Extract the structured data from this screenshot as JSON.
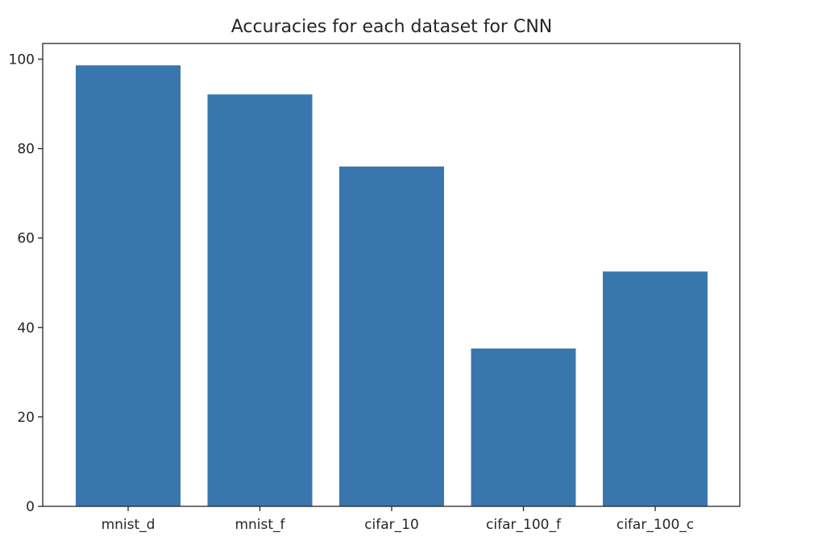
{
  "chart_data": {
    "type": "bar",
    "title": "Accuracies for each dataset for CNN",
    "xlabel": "",
    "ylabel": "",
    "categories": [
      "mnist_d",
      "mnist_f",
      "cifar_10",
      "cifar_100_f",
      "cifar_100_c"
    ],
    "values": [
      98.6,
      92.1,
      76.0,
      35.3,
      52.5
    ],
    "ylim": [
      0,
      103.5
    ],
    "yticks": [
      0,
      20,
      40,
      60,
      80,
      100
    ],
    "grid": false,
    "legend": "none",
    "bar_color": "#3a76ae"
  }
}
